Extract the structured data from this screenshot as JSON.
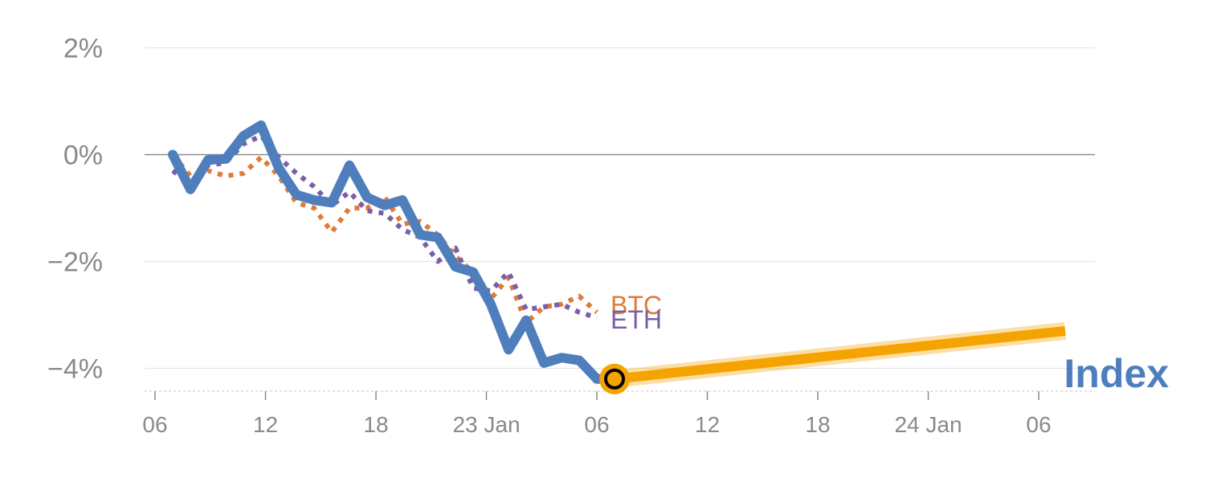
{
  "chart_data": {
    "type": "line",
    "y_ticks": [
      {
        "value": 2,
        "label": "2%"
      },
      {
        "value": 0,
        "label": "0%"
      },
      {
        "value": -2,
        "label": "−2%"
      },
      {
        "value": -4,
        "label": "−4%"
      }
    ],
    "ylim": [
      -4.4,
      2.2
    ],
    "xlim": [
      0,
      42.5
    ],
    "x_ticks": [
      {
        "day": 0,
        "label": "06"
      },
      {
        "day": 5,
        "label": "12"
      },
      {
        "day": 10,
        "label": "18"
      },
      {
        "day": 15,
        "label": "23 Jan"
      },
      {
        "day": 20,
        "label": "06"
      },
      {
        "day": 25,
        "label": "12"
      },
      {
        "day": 30,
        "label": "18"
      },
      {
        "day": 35,
        "label": "24 Jan"
      },
      {
        "day": 40,
        "label": "06"
      }
    ],
    "series": [
      {
        "name": "BTC",
        "label": "BTC",
        "color": "#e07b39",
        "style": "dotted",
        "x": [
          0.8,
          1.6,
          2.4,
          3.2,
          4.0,
          4.8,
          5.6,
          6.4,
          7.2,
          8.0,
          8.8,
          9.6,
          10.4,
          11.2,
          12.0,
          12.8,
          13.6,
          14.4,
          15.2,
          16.0,
          16.8,
          17.6,
          18.4,
          19.2,
          20.0
        ],
        "y": [
          0.0,
          -0.4,
          -0.3,
          -0.4,
          -0.35,
          -0.05,
          -0.4,
          -0.9,
          -1.0,
          -1.45,
          -1.0,
          -1.0,
          -0.8,
          -1.3,
          -1.25,
          -1.5,
          -1.9,
          -2.2,
          -2.7,
          -2.3,
          -3.15,
          -2.85,
          -2.8,
          -2.65,
          -2.95
        ]
      },
      {
        "name": "ETH",
        "label": "ETH",
        "color": "#7b5ea7",
        "style": "dotted",
        "x": [
          0.8,
          1.6,
          2.4,
          3.2,
          4.0,
          4.8,
          5.6,
          6.4,
          7.2,
          8.0,
          8.8,
          9.6,
          10.4,
          11.2,
          12.0,
          12.8,
          13.6,
          14.4,
          15.2,
          16.0,
          16.8,
          17.6,
          18.4,
          19.2,
          20.0
        ],
        "y": [
          -0.3,
          -0.55,
          -0.2,
          -0.15,
          0.2,
          0.35,
          -0.05,
          -0.35,
          -0.6,
          -0.95,
          -0.7,
          -1.05,
          -1.1,
          -1.4,
          -1.55,
          -2.0,
          -1.75,
          -2.5,
          -2.55,
          -2.2,
          -2.9,
          -2.85,
          -2.8,
          -2.95,
          -3.05
        ]
      },
      {
        "name": "Index",
        "label": "Index",
        "color": "#4f7ebd",
        "style": "solid",
        "x": [
          0.8,
          1.6,
          2.4,
          3.2,
          4.0,
          4.8,
          5.6,
          6.4,
          7.2,
          8.0,
          8.8,
          9.6,
          10.4,
          11.2,
          12.0,
          12.8,
          13.6,
          14.4,
          15.2,
          16.0,
          16.8,
          17.6,
          18.4,
          19.2,
          20.0,
          20.8
        ],
        "y": [
          0.0,
          -0.65,
          -0.1,
          -0.08,
          0.35,
          0.55,
          -0.25,
          -0.75,
          -0.85,
          -0.9,
          -0.2,
          -0.8,
          -0.95,
          -0.85,
          -1.5,
          -1.55,
          -2.1,
          -2.2,
          -2.8,
          -3.65,
          -3.1,
          -3.9,
          -3.8,
          -3.85,
          -4.2,
          -4.2
        ]
      }
    ],
    "projection": {
      "color": "#f5a300",
      "x": [
        20.8,
        41.2
      ],
      "y": [
        -4.2,
        -3.3
      ]
    },
    "marker": {
      "x": 20.8,
      "y": -4.2,
      "fill": "#f5a300",
      "ring": "#000000"
    }
  }
}
